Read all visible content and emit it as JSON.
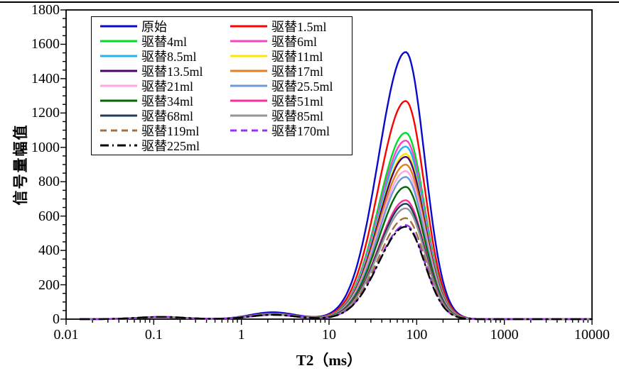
{
  "page": {
    "background": "#ffffff",
    "top_border_color": "#000000"
  },
  "chart_data": {
    "type": "line",
    "title": "",
    "xlabel": "T2（ms）",
    "ylabel": "信号量幅值",
    "x_scale": "log",
    "xlim": [
      0.01,
      10000
    ],
    "ylim": [
      0,
      1800
    ],
    "grid": false,
    "legend_position": "top-left, 2 columns, boxed",
    "x_ticks": [
      {
        "value": 0.01,
        "label": "0.01"
      },
      {
        "value": 0.1,
        "label": "0.1"
      },
      {
        "value": 1,
        "label": "1"
      },
      {
        "value": 10,
        "label": "10"
      },
      {
        "value": 100,
        "label": "100"
      },
      {
        "value": 1000,
        "label": "1000"
      },
      {
        "value": 10000,
        "label": "10000"
      }
    ],
    "y_ticks": [
      {
        "value": 0,
        "label": "0"
      },
      {
        "value": 200,
        "label": "200"
      },
      {
        "value": 400,
        "label": "400"
      },
      {
        "value": 600,
        "label": "600"
      },
      {
        "value": 800,
        "label": "800"
      },
      {
        "value": 1000,
        "label": "1000"
      },
      {
        "value": 1200,
        "label": "1200"
      },
      {
        "value": 1400,
        "label": "1400"
      },
      {
        "value": 1600,
        "label": "1600"
      },
      {
        "value": 1800,
        "label": "1800"
      }
    ],
    "y_minor_step": 50,
    "curve_model": {
      "description": "Each T2 spectrum = small hump near 0.12 ms + small hump near 2.3 ms + main asymmetric peak near 75 ms; x in log10 space",
      "hump1_center_log10": -0.92,
      "hump1_sigma": 0.27,
      "hump2_center_log10": 0.36,
      "hump2_sigma": 0.26,
      "main_center_log10": 1.875,
      "main_sigma_left": 0.31,
      "main_sigma_right": 0.215,
      "main_peak_ms": 75,
      "main_peak_range_ms": [
        8,
        300
      ]
    },
    "series": [
      {
        "name": "原始",
        "color": "#0A0ACC",
        "style": "solid",
        "peak": 1555,
        "hump1": 12,
        "hump2": 40
      },
      {
        "name": "驱替1.5ml",
        "color": "#FF0000",
        "style": "solid",
        "peak": 1270,
        "hump1": 12,
        "hump2": 32
      },
      {
        "name": "驱替4ml",
        "color": "#00DC28",
        "style": "solid",
        "peak": 1085,
        "hump1": 12,
        "hump2": 31
      },
      {
        "name": "驱替6ml",
        "color": "#FF42C3",
        "style": "solid",
        "peak": 1040,
        "hump1": 12,
        "hump2": 30
      },
      {
        "name": "驱替8.5ml",
        "color": "#1FB4EB",
        "style": "solid",
        "peak": 1005,
        "hump1": 12,
        "hump2": 30
      },
      {
        "name": "驱替11ml",
        "color": "#FFE600",
        "style": "solid",
        "peak": 962,
        "hump1": 12,
        "hump2": 29
      },
      {
        "name": "驱替13.5ml",
        "color": "#4A056E",
        "style": "solid",
        "peak": 945,
        "hump1": 12,
        "hump2": 29
      },
      {
        "name": "驱替17ml",
        "color": "#E0801F",
        "style": "solid",
        "peak": 900,
        "hump1": 12,
        "hump2": 28
      },
      {
        "name": "驱替21ml",
        "color": "#FFA6E3",
        "style": "solid",
        "peak": 862,
        "hump1": 12,
        "hump2": 28
      },
      {
        "name": "驱替25.5ml",
        "color": "#6D9AD4",
        "style": "solid",
        "peak": 828,
        "hump1": 12,
        "hump2": 27
      },
      {
        "name": "驱替34ml",
        "color": "#066606",
        "style": "solid",
        "peak": 770,
        "hump1": 12,
        "hump2": 27
      },
      {
        "name": "驱替51ml",
        "color": "#FB2E96",
        "style": "solid",
        "peak": 692,
        "hump1": 12,
        "hump2": 26
      },
      {
        "name": "驱替68ml",
        "color": "#1E3C5C",
        "style": "solid",
        "peak": 672,
        "hump1": 12,
        "hump2": 26
      },
      {
        "name": "驱替85ml",
        "color": "#969696",
        "style": "solid",
        "peak": 645,
        "hump1": 12,
        "hump2": 26
      },
      {
        "name": "驱替119ml",
        "color": "#A3713D",
        "style": "dashed",
        "peak": 588,
        "hump1": 13,
        "hump2": 25
      },
      {
        "name": "驱替170ml",
        "color": "#9933F5",
        "style": "dashed",
        "peak": 548,
        "hump1": 13,
        "hump2": 25
      },
      {
        "name": "驱替225ml",
        "color": "#000000",
        "style": "dashdot",
        "peak": 538,
        "hump1": 13,
        "hump2": 25
      }
    ]
  },
  "layout_colors": {
    "axis": "#000000",
    "text": "#000000"
  }
}
